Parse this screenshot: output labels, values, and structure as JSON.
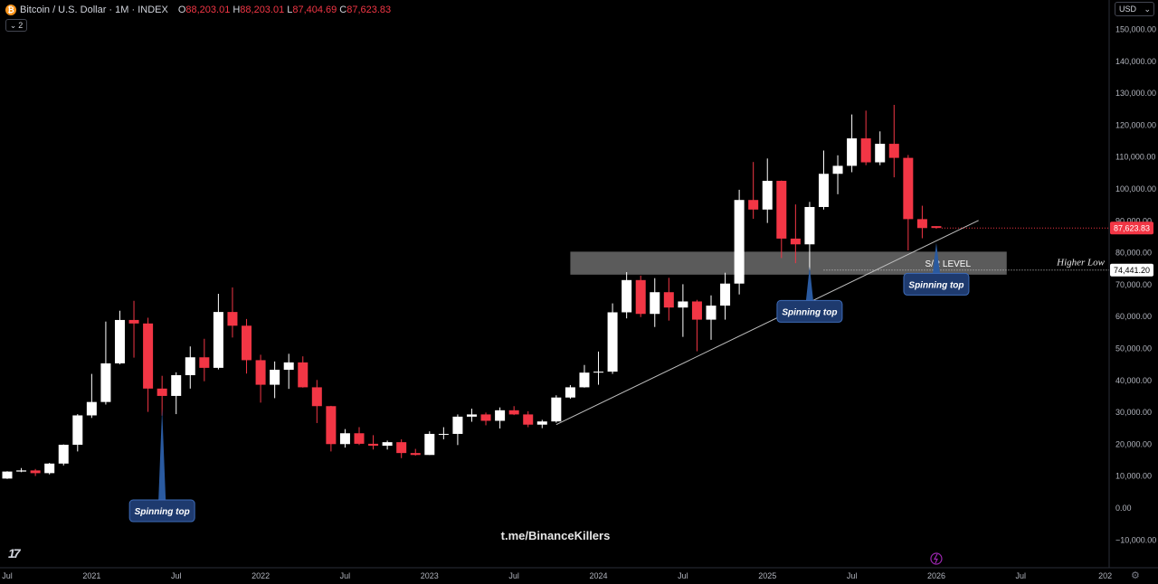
{
  "header": {
    "symbol_icon": "bitcoin-icon",
    "title": "Bitcoin / U.S. Dollar · 1M · INDEX",
    "open_label": "O",
    "open": "88,203.01",
    "high_label": "H",
    "high": "88,203.01",
    "low_label": "L",
    "low": "87,404.69",
    "close_label": "C",
    "close": "87,623.83"
  },
  "indicator_toggle": {
    "icon": "chevron-down-icon",
    "count": "2"
  },
  "currency": {
    "label": "USD",
    "icon": "chevron-down-icon"
  },
  "watermark": "t.me/BinanceKillers",
  "colors": {
    "up": "#ffffff",
    "down": "#f23645",
    "bg": "#000000",
    "axis_text": "#b2b5be",
    "badge": "#1e3a6e"
  },
  "chart_data": {
    "type": "candlestick",
    "title": "Bitcoin / U.S. Dollar · 1M · INDEX",
    "ylim": [
      -15000,
      160000
    ],
    "y_ticks": [
      -10000,
      0,
      10000,
      20000,
      30000,
      40000,
      50000,
      60000,
      70000,
      80000,
      90000,
      100000,
      110000,
      120000,
      130000,
      140000,
      150000
    ],
    "y_tick_labels": [
      "−10,000.00",
      "0.00",
      "10,000.00",
      "20,000.00",
      "30,000.00",
      "40,000.00",
      "50,000.00",
      "60,000.00",
      "70,000.00",
      "80,000.00",
      "90,000.00",
      "100,000.00",
      "110,000.00",
      "120,000.00",
      "130,000.00",
      "140,000.00",
      "150,000.00"
    ],
    "x_labels": [
      {
        "text": "Jul",
        "month": 0
      },
      {
        "text": "2021",
        "month": 6
      },
      {
        "text": "Jul",
        "month": 12
      },
      {
        "text": "2022",
        "month": 18
      },
      {
        "text": "Jul",
        "month": 24
      },
      {
        "text": "2023",
        "month": 30
      },
      {
        "text": "Jul",
        "month": 36
      },
      {
        "text": "2024",
        "month": 42
      },
      {
        "text": "Jul",
        "month": 48
      },
      {
        "text": "2025",
        "month": 54
      },
      {
        "text": "Jul",
        "month": 60
      },
      {
        "text": "2026",
        "month": 66
      },
      {
        "text": "Jul",
        "month": 72
      },
      {
        "text": "202",
        "month": 78
      }
    ],
    "candles": [
      {
        "t": "2020-07",
        "o": 9100,
        "h": 11400,
        "l": 9000,
        "c": 11300
      },
      {
        "t": "2020-08",
        "o": 11300,
        "h": 12400,
        "l": 11100,
        "c": 11650
      },
      {
        "t": "2020-09",
        "o": 11650,
        "h": 12100,
        "l": 9900,
        "c": 10800
      },
      {
        "t": "2020-10",
        "o": 10800,
        "h": 14000,
        "l": 10400,
        "c": 13800
      },
      {
        "t": "2020-11",
        "o": 13800,
        "h": 19800,
        "l": 13200,
        "c": 19700
      },
      {
        "t": "2020-12",
        "o": 19700,
        "h": 29300,
        "l": 17600,
        "c": 28900
      },
      {
        "t": "2021-01",
        "o": 28900,
        "h": 41900,
        "l": 28100,
        "c": 33100
      },
      {
        "t": "2021-02",
        "o": 33100,
        "h": 58300,
        "l": 32300,
        "c": 45200
      },
      {
        "t": "2021-03",
        "o": 45200,
        "h": 61700,
        "l": 44900,
        "c": 58800
      },
      {
        "t": "2021-04",
        "o": 58800,
        "h": 64800,
        "l": 47000,
        "c": 57700
      },
      {
        "t": "2021-05",
        "o": 57700,
        "h": 59500,
        "l": 30000,
        "c": 37300
      },
      {
        "t": "2021-06",
        "o": 37300,
        "h": 41300,
        "l": 28800,
        "c": 35000
      },
      {
        "t": "2021-07",
        "o": 35000,
        "h": 42400,
        "l": 29300,
        "c": 41500
      },
      {
        "t": "2021-08",
        "o": 41500,
        "h": 50500,
        "l": 37300,
        "c": 47100
      },
      {
        "t": "2021-09",
        "o": 47100,
        "h": 52900,
        "l": 39600,
        "c": 43800
      },
      {
        "t": "2021-10",
        "o": 43800,
        "h": 67000,
        "l": 43300,
        "c": 61300
      },
      {
        "t": "2021-11",
        "o": 61300,
        "h": 69000,
        "l": 53300,
        "c": 57000
      },
      {
        "t": "2021-12",
        "o": 57000,
        "h": 59100,
        "l": 42000,
        "c": 46200
      },
      {
        "t": "2022-01",
        "o": 46200,
        "h": 47900,
        "l": 32900,
        "c": 38500
      },
      {
        "t": "2022-02",
        "o": 38500,
        "h": 45800,
        "l": 34300,
        "c": 43200
      },
      {
        "t": "2022-03",
        "o": 43200,
        "h": 48200,
        "l": 37200,
        "c": 45500
      },
      {
        "t": "2022-04",
        "o": 45500,
        "h": 47400,
        "l": 37600,
        "c": 37700
      },
      {
        "t": "2022-05",
        "o": 37700,
        "h": 40000,
        "l": 26500,
        "c": 31800
      },
      {
        "t": "2022-06",
        "o": 31800,
        "h": 31900,
        "l": 17600,
        "c": 19900
      },
      {
        "t": "2022-07",
        "o": 19900,
        "h": 24600,
        "l": 18800,
        "c": 23300
      },
      {
        "t": "2022-08",
        "o": 23300,
        "h": 25200,
        "l": 19600,
        "c": 20000
      },
      {
        "t": "2022-09",
        "o": 20000,
        "h": 22700,
        "l": 18200,
        "c": 19400
      },
      {
        "t": "2022-10",
        "o": 19400,
        "h": 21000,
        "l": 18200,
        "c": 20500
      },
      {
        "t": "2022-11",
        "o": 20500,
        "h": 21400,
        "l": 15500,
        "c": 17100
      },
      {
        "t": "2022-12",
        "o": 17100,
        "h": 18400,
        "l": 16300,
        "c": 16500
      },
      {
        "t": "2023-01",
        "o": 16500,
        "h": 23900,
        "l": 16500,
        "c": 23100
      },
      {
        "t": "2023-02",
        "o": 23100,
        "h": 25200,
        "l": 21400,
        "c": 23100
      },
      {
        "t": "2023-03",
        "o": 23100,
        "h": 29200,
        "l": 19600,
        "c": 28500
      },
      {
        "t": "2023-04",
        "o": 28500,
        "h": 31000,
        "l": 26900,
        "c": 29200
      },
      {
        "t": "2023-05",
        "o": 29200,
        "h": 29800,
        "l": 25800,
        "c": 27200
      },
      {
        "t": "2023-06",
        "o": 27200,
        "h": 31400,
        "l": 24800,
        "c": 30500
      },
      {
        "t": "2023-07",
        "o": 30500,
        "h": 31800,
        "l": 29000,
        "c": 29200
      },
      {
        "t": "2023-08",
        "o": 29200,
        "h": 30200,
        "l": 25200,
        "c": 26000
      },
      {
        "t": "2023-09",
        "o": 26000,
        "h": 27500,
        "l": 24900,
        "c": 27000
      },
      {
        "t": "2023-10",
        "o": 27000,
        "h": 35200,
        "l": 26600,
        "c": 34500
      },
      {
        "t": "2023-11",
        "o": 34500,
        "h": 38400,
        "l": 34100,
        "c": 37700
      },
      {
        "t": "2023-12",
        "o": 37700,
        "h": 44700,
        "l": 37600,
        "c": 42300
      },
      {
        "t": "2024-01",
        "o": 42300,
        "h": 48900,
        "l": 38500,
        "c": 42600
      },
      {
        "t": "2024-02",
        "o": 42600,
        "h": 64000,
        "l": 41900,
        "c": 61200
      },
      {
        "t": "2024-03",
        "o": 61200,
        "h": 73800,
        "l": 59300,
        "c": 71300
      },
      {
        "t": "2024-04",
        "o": 71300,
        "h": 72700,
        "l": 59700,
        "c": 60700
      },
      {
        "t": "2024-05",
        "o": 60700,
        "h": 71900,
        "l": 56600,
        "c": 67500
      },
      {
        "t": "2024-06",
        "o": 67500,
        "h": 72000,
        "l": 58600,
        "c": 62700
      },
      {
        "t": "2024-07",
        "o": 62700,
        "h": 70000,
        "l": 53500,
        "c": 64600
      },
      {
        "t": "2024-08",
        "o": 64600,
        "h": 65100,
        "l": 49000,
        "c": 58900
      },
      {
        "t": "2024-09",
        "o": 58900,
        "h": 66500,
        "l": 52600,
        "c": 63300
      },
      {
        "t": "2024-10",
        "o": 63300,
        "h": 73600,
        "l": 58900,
        "c": 70200
      },
      {
        "t": "2024-11",
        "o": 70200,
        "h": 99600,
        "l": 66800,
        "c": 96400
      },
      {
        "t": "2024-12",
        "o": 96400,
        "h": 108300,
        "l": 90500,
        "c": 93400
      },
      {
        "t": "2025-01",
        "o": 93400,
        "h": 109400,
        "l": 89200,
        "c": 102400
      },
      {
        "t": "2025-02",
        "o": 102400,
        "h": 102500,
        "l": 78200,
        "c": 84300
      },
      {
        "t": "2025-03",
        "o": 84300,
        "h": 95000,
        "l": 76600,
        "c": 82500
      },
      {
        "t": "2025-04",
        "o": 82500,
        "h": 95800,
        "l": 74400,
        "c": 94200
      },
      {
        "t": "2025-05",
        "o": 94200,
        "h": 111900,
        "l": 93400,
        "c": 104600
      },
      {
        "t": "2025-06",
        "o": 104600,
        "h": 110400,
        "l": 98200,
        "c": 107100
      },
      {
        "t": "2025-07",
        "o": 107100,
        "h": 123200,
        "l": 105100,
        "c": 115700
      },
      {
        "t": "2025-08",
        "o": 115700,
        "h": 124400,
        "l": 107300,
        "c": 108200
      },
      {
        "t": "2025-09",
        "o": 108200,
        "h": 117900,
        "l": 107300,
        "c": 114000
      },
      {
        "t": "2025-10",
        "o": 114000,
        "h": 126200,
        "l": 103500,
        "c": 109600
      },
      {
        "t": "2025-11",
        "o": 109600,
        "h": 110500,
        "l": 80600,
        "c": 90400
      },
      {
        "t": "2025-12",
        "o": 90400,
        "h": 94600,
        "l": 84400,
        "c": 87600
      },
      {
        "t": "2026-01",
        "o": 88203.01,
        "h": 88203.01,
        "l": 87404.69,
        "c": 87623.83
      }
    ],
    "sr_zone": {
      "label": "S/R LEVEL",
      "from": 73000,
      "to": 80200,
      "start_month": 40,
      "end_month": 71
    },
    "higher_low": {
      "label": "Higher Low",
      "price": 74441.2,
      "price_label": "74,441.20",
      "start_month": 58
    },
    "trendline": {
      "from": {
        "month": 39,
        "price": 26000
      },
      "to": {
        "month": 69,
        "price": 90000
      }
    },
    "last_price": {
      "value": 87623.83,
      "label": "87,623.83"
    },
    "annotations": [
      {
        "label": "Spinning top",
        "month": 11,
        "price": -1000,
        "pointer_price": 31000
      },
      {
        "label": "Spinning top",
        "month": 57,
        "price": 61500,
        "pointer_price": 75500
      },
      {
        "label": "Spinning top",
        "month": 66,
        "price": 70000,
        "pointer_price": 83000
      }
    ],
    "event_marker_month": 66
  }
}
